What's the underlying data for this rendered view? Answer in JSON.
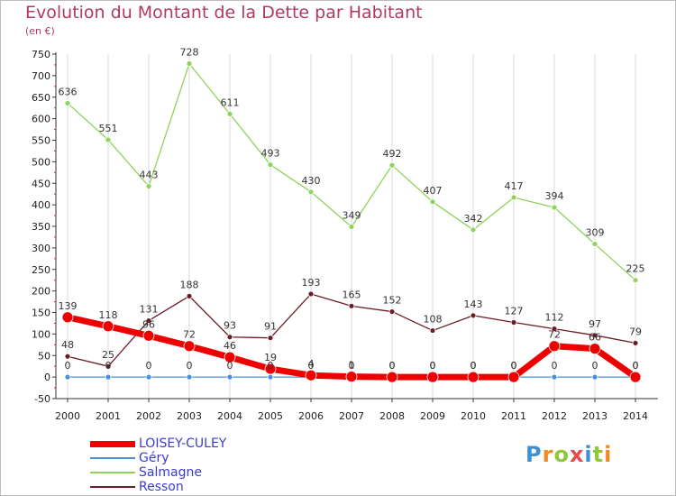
{
  "chart_data": {
    "type": "line",
    "title": "Evolution du Montant de la Dette par Habitant",
    "subtitle": "(en €)",
    "xlabel": "",
    "ylabel": "",
    "ylim": [
      -50,
      750
    ],
    "y_ticks": [
      -50,
      0,
      50,
      100,
      150,
      200,
      250,
      300,
      350,
      400,
      450,
      500,
      550,
      600,
      650,
      700,
      750
    ],
    "grid": "vertical",
    "categories": [
      "2000",
      "2001",
      "2002",
      "2003",
      "2004",
      "2005",
      "2006",
      "2007",
      "2008",
      "2009",
      "2010",
      "2011",
      "2012",
      "2013",
      "2014"
    ],
    "series": [
      {
        "name": "Salmagne",
        "color": "#8fd35a",
        "values": [
          636,
          551,
          443,
          728,
          611,
          493,
          430,
          349,
          492,
          407,
          342,
          417,
          394,
          309,
          225
        ]
      },
      {
        "name": "Resson",
        "color": "#6b1c26",
        "values": [
          48,
          25,
          131,
          188,
          93,
          91,
          193,
          165,
          152,
          108,
          143,
          127,
          112,
          97,
          79
        ]
      },
      {
        "name": "Géry",
        "color": "#4a8fd8",
        "values": [
          0,
          0,
          0,
          0,
          0,
          0,
          0,
          0,
          0,
          0,
          0,
          0,
          0,
          0,
          0
        ]
      },
      {
        "name": "LOISEY-CULEY",
        "color": "#ee0000",
        "values": [
          139,
          118,
          96,
          72,
          46,
          19,
          4,
          1,
          0,
          0,
          0,
          0,
          72,
          66,
          0
        ]
      }
    ],
    "legend": {
      "position": "bottom-left",
      "entries": [
        "LOISEY-CULEY",
        "Géry",
        "Salmagne",
        "Resson"
      ]
    }
  },
  "brand": {
    "text": "Proxiti",
    "colors": [
      "#3d8fd6",
      "#f08a24",
      "#8fc93a",
      "#e84a4a",
      "#3d8fd6",
      "#8fc93a",
      "#f08a24"
    ]
  }
}
